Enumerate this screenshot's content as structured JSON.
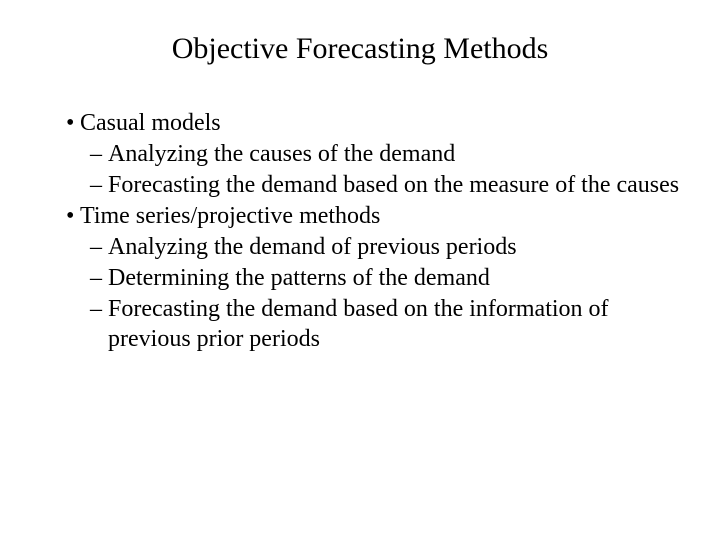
{
  "slide": {
    "title": "Objective Forecasting Methods",
    "title_fontsize": 30,
    "body_fontsize": 24,
    "font_family": "Times New Roman",
    "text_color": "#000000",
    "background_color": "#ffffff",
    "bullets": [
      {
        "level": 1,
        "marker": "•",
        "text": "Casual models"
      },
      {
        "level": 2,
        "marker": "–",
        "text": "Analyzing the causes of the demand"
      },
      {
        "level": 2,
        "marker": "–",
        "text": "Forecasting the demand based on the measure of the causes"
      },
      {
        "level": 1,
        "marker": "•",
        "text": "Time series/projective methods"
      },
      {
        "level": 2,
        "marker": "–",
        "text": "Analyzing the demand of previous periods"
      },
      {
        "level": 2,
        "marker": "–",
        "text": "Determining the patterns of the demand"
      },
      {
        "level": 2,
        "marker": "–",
        "text": "Forecasting the demand based on the information of previous prior periods"
      }
    ]
  }
}
